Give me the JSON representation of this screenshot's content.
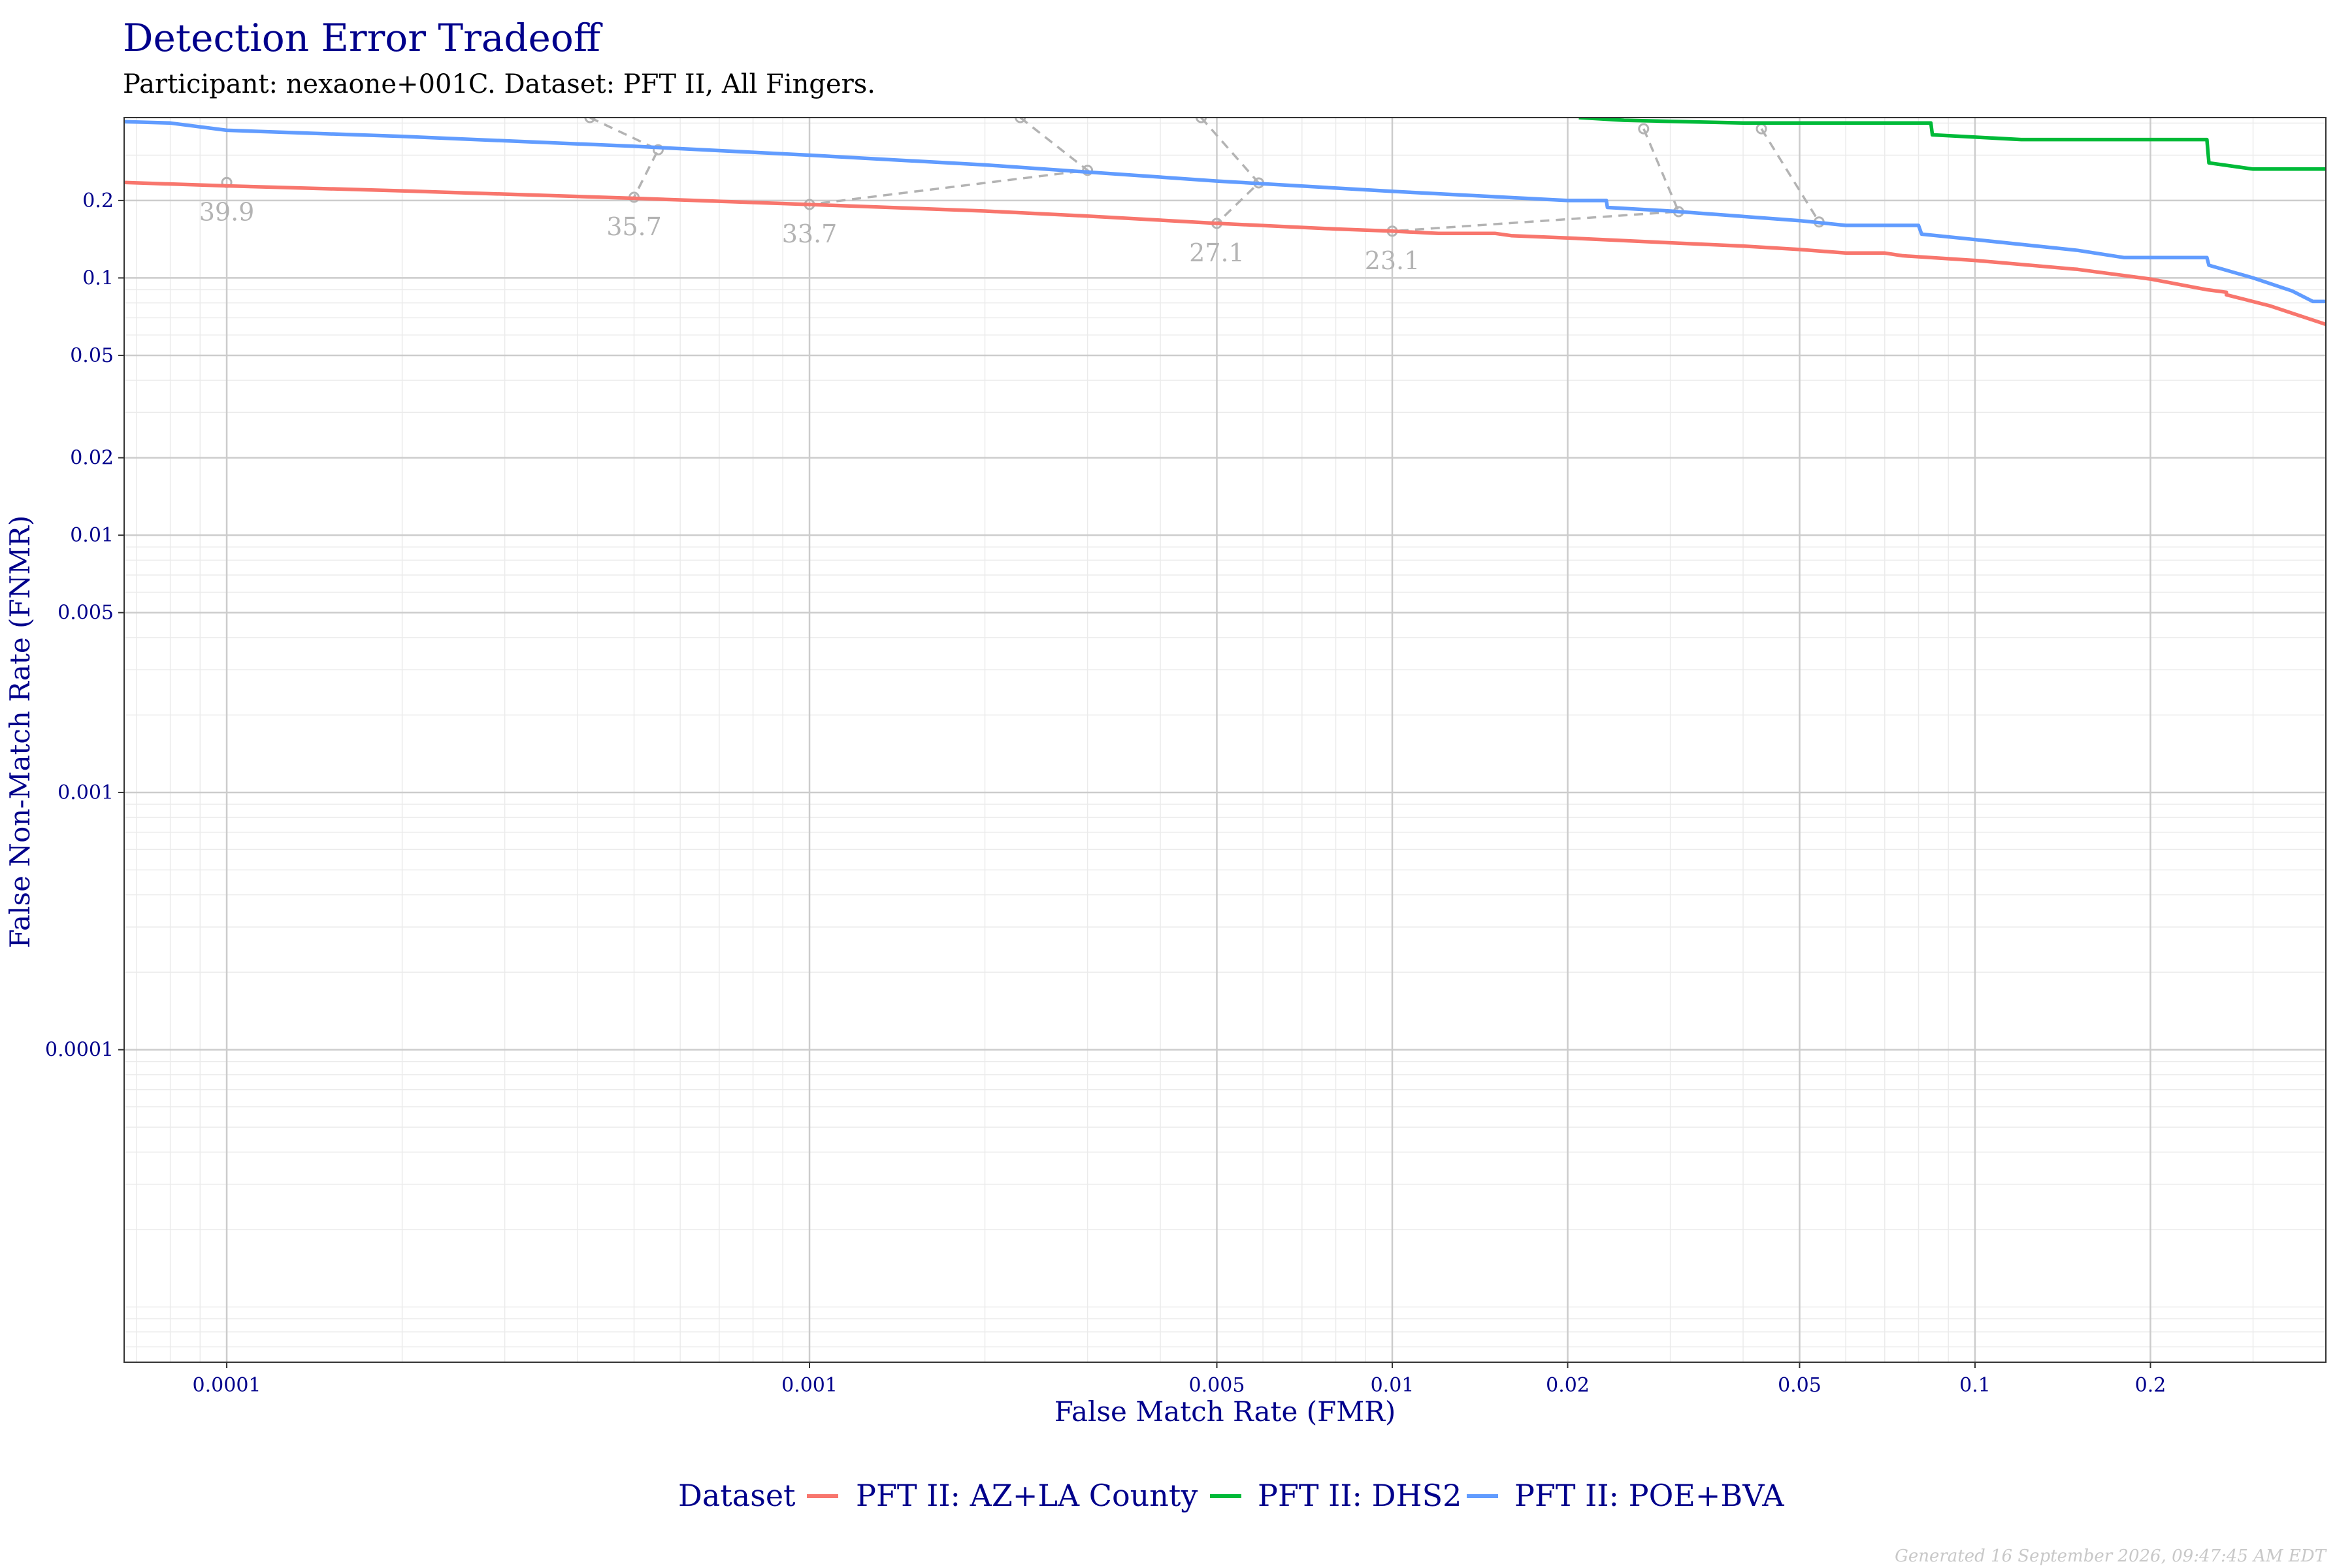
{
  "chart_data": {
    "type": "line",
    "title": "Detection Error Tradeoff",
    "subtitle": "Participant: nexaone+001C. Dataset: PFT II, All Fingers.",
    "xlabel": "False Match Rate (FMR)",
    "ylabel": "False Non-Match Rate (FNMR)",
    "x_scale": "log",
    "y_scale": "log",
    "xlim": [
      6.667e-05,
      0.4
    ],
    "ylim": [
      6.1e-06,
      0.42
    ],
    "x_ticks": [
      {
        "value": 0.0001,
        "label": "0.0001"
      },
      {
        "value": 0.001,
        "label": "0.001"
      },
      {
        "value": 0.005,
        "label": "0.005"
      },
      {
        "value": 0.01,
        "label": "0.01"
      },
      {
        "value": 0.02,
        "label": "0.02"
      },
      {
        "value": 0.05,
        "label": "0.05"
      },
      {
        "value": 0.1,
        "label": "0.1"
      },
      {
        "value": 0.2,
        "label": "0.2"
      }
    ],
    "y_ticks": [
      {
        "value": 0.0001,
        "label": "0.0001"
      },
      {
        "value": 0.001,
        "label": "0.001"
      },
      {
        "value": 0.005,
        "label": "0.005"
      },
      {
        "value": 0.01,
        "label": "0.01"
      },
      {
        "value": 0.02,
        "label": "0.02"
      },
      {
        "value": 0.05,
        "label": "0.05"
      },
      {
        "value": 0.1,
        "label": "0.1"
      },
      {
        "value": 0.2,
        "label": "0.2"
      }
    ],
    "grid": true,
    "legend": {
      "title": "Dataset",
      "position": "bottom"
    },
    "series": [
      {
        "name": "PFT II: AZ+LA County",
        "color": "#f8766d",
        "points": [
          [
            6.67e-05,
            0.235
          ],
          [
            0.0001,
            0.228
          ],
          [
            0.0002,
            0.218
          ],
          [
            0.0005,
            0.204
          ],
          [
            0.001,
            0.193
          ],
          [
            0.002,
            0.182
          ],
          [
            0.003,
            0.174
          ],
          [
            0.005,
            0.163
          ],
          [
            0.008,
            0.155
          ],
          [
            0.01,
            0.152
          ],
          [
            0.012,
            0.149
          ],
          [
            0.015,
            0.149
          ],
          [
            0.016,
            0.146
          ],
          [
            0.02,
            0.143
          ],
          [
            0.03,
            0.137
          ],
          [
            0.04,
            0.133
          ],
          [
            0.05,
            0.129
          ],
          [
            0.06,
            0.125
          ],
          [
            0.07,
            0.125
          ],
          [
            0.075,
            0.122
          ],
          [
            0.1,
            0.117
          ],
          [
            0.15,
            0.108
          ],
          [
            0.2,
            0.099
          ],
          [
            0.25,
            0.09
          ],
          [
            0.27,
            0.088
          ],
          [
            0.27,
            0.086
          ],
          [
            0.32,
            0.078
          ],
          [
            0.4,
            0.066
          ]
        ]
      },
      {
        "name": "PFT II: DHS2",
        "color": "#00ba38",
        "points": [
          [
            0.0209,
            0.42
          ],
          [
            0.025,
            0.41
          ],
          [
            0.04,
            0.4
          ],
          [
            0.06,
            0.4
          ],
          [
            0.084,
            0.4
          ],
          [
            0.0845,
            0.36
          ],
          [
            0.12,
            0.345
          ],
          [
            0.15,
            0.345
          ],
          [
            0.25,
            0.345
          ],
          [
            0.252,
            0.28
          ],
          [
            0.3,
            0.265
          ],
          [
            0.4,
            0.265
          ]
        ]
      },
      {
        "name": "PFT II: POE+BVA",
        "color": "#619cff",
        "points": [
          [
            6.67e-05,
            0.405
          ],
          [
            8e-05,
            0.4
          ],
          [
            0.0001,
            0.375
          ],
          [
            0.0002,
            0.355
          ],
          [
            0.0005,
            0.325
          ],
          [
            0.001,
            0.3
          ],
          [
            0.002,
            0.275
          ],
          [
            0.005,
            0.238
          ],
          [
            0.01,
            0.217
          ],
          [
            0.02,
            0.2
          ],
          [
            0.0233,
            0.2
          ],
          [
            0.0234,
            0.188
          ],
          [
            0.03,
            0.182
          ],
          [
            0.05,
            0.167
          ],
          [
            0.06,
            0.16
          ],
          [
            0.08,
            0.16
          ],
          [
            0.081,
            0.148
          ],
          [
            0.1,
            0.141
          ],
          [
            0.15,
            0.128
          ],
          [
            0.18,
            0.12
          ],
          [
            0.25,
            0.12
          ],
          [
            0.252,
            0.112
          ],
          [
            0.3,
            0.1
          ],
          [
            0.35,
            0.089
          ],
          [
            0.38,
            0.081
          ],
          [
            0.4,
            0.081
          ]
        ]
      }
    ],
    "threshold_points": {
      "color": "#b3b3b3",
      "items": [
        {
          "label": "39.9",
          "az": [
            0.0001,
            0.235
          ],
          "poe": null,
          "dhs": null
        },
        {
          "label": "35.7",
          "az": [
            0.0005,
            0.206
          ],
          "poe": [
            0.00055,
            0.315
          ],
          "dhs": [
            0.00042,
            0.42
          ]
        },
        {
          "label": "33.7",
          "az": [
            0.001,
            0.193
          ],
          "poe": [
            0.003,
            0.262
          ],
          "dhs": [
            0.0023,
            0.42
          ]
        },
        {
          "label": "27.1",
          "az": [
            0.005,
            0.163
          ],
          "poe": [
            0.0059,
            0.234
          ],
          "dhs": [
            0.0047,
            0.42
          ]
        },
        {
          "label": "23.1",
          "az": [
            0.01,
            0.152
          ],
          "poe": [
            0.031,
            0.181
          ],
          "dhs": [
            0.027,
            0.38
          ]
        },
        {
          "label": "",
          "az": null,
          "poe": [
            0.054,
            0.165
          ],
          "dhs": [
            0.043,
            0.38
          ]
        }
      ]
    }
  },
  "footer": "Generated 16 September 2026, 09:47:45 AM EDT"
}
